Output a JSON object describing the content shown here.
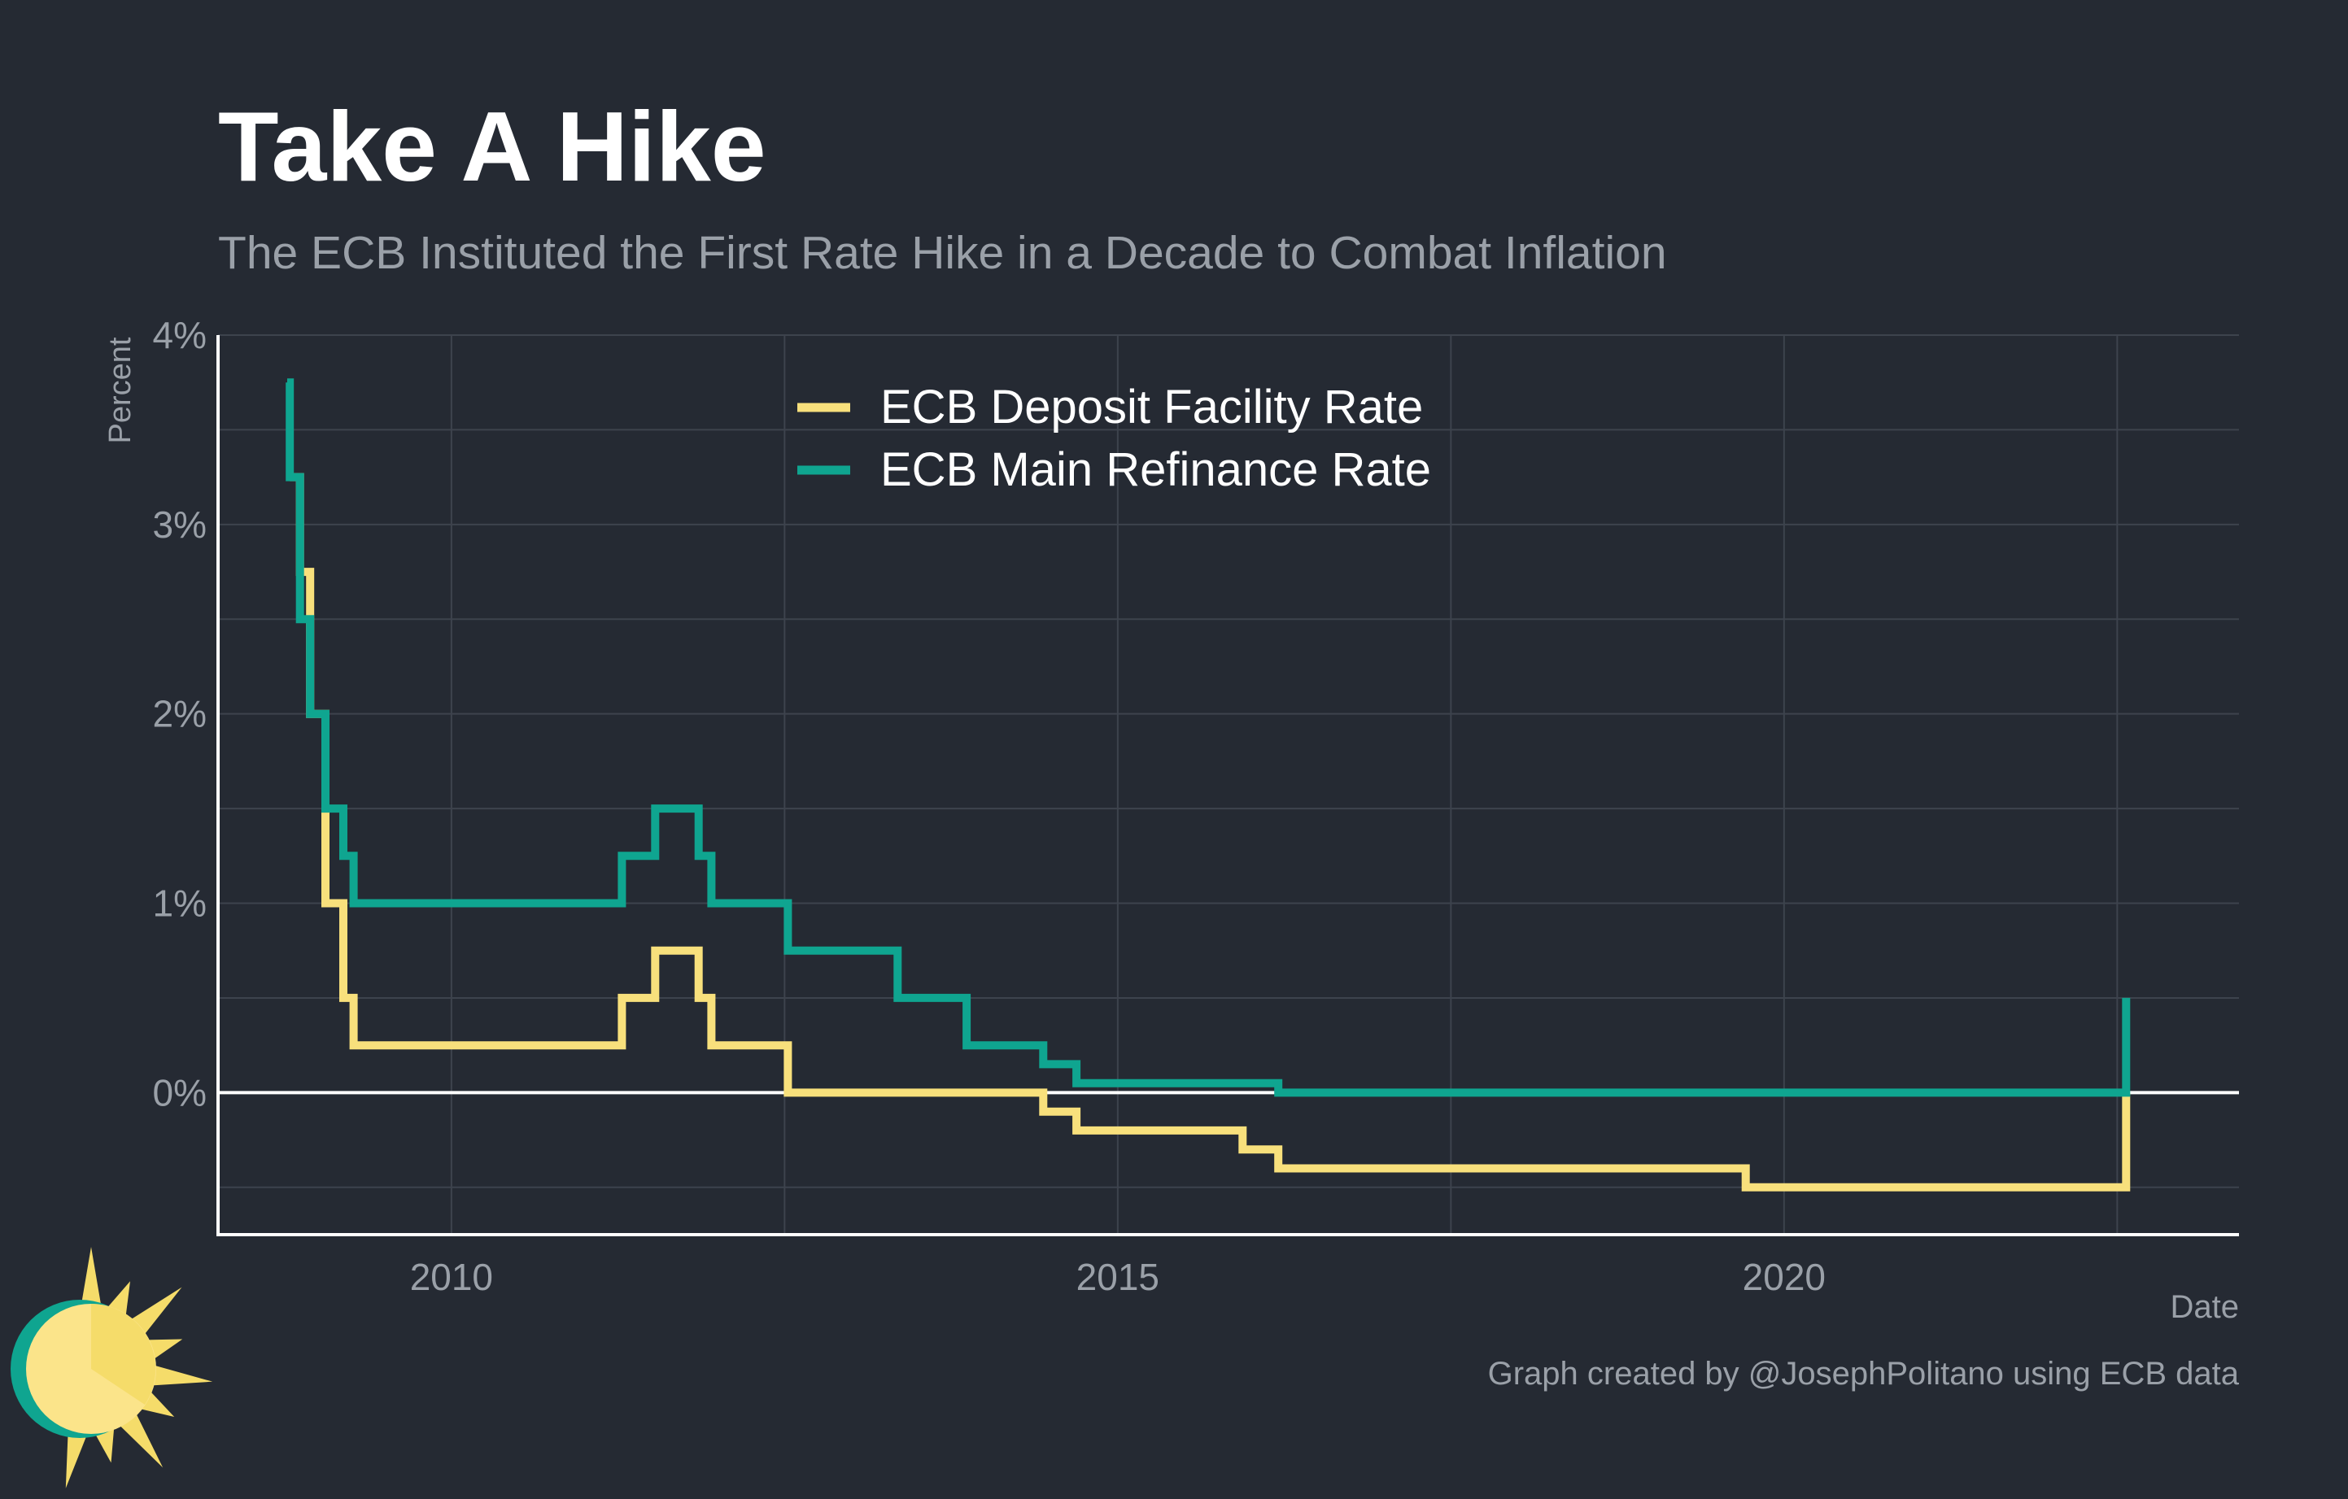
{
  "chart_data": {
    "type": "line",
    "title": "Take A Hike",
    "subtitle": "The ECB Instituted the First Rate Hike in a Decade to Combat Inflation",
    "xlabel": "Date",
    "ylabel": "Percent",
    "caption": "Graph created by @JosephPolitano using ECB data",
    "xlim": [
      "2008-04-01",
      "2023-06-01"
    ],
    "ylim": [
      -0.75,
      4
    ],
    "x_ticks": [
      {
        "date": "2010-01-01",
        "label": "2010"
      },
      {
        "date": "2015-01-01",
        "label": "2015"
      },
      {
        "date": "2020-01-01",
        "label": "2020"
      }
    ],
    "y_ticks": [
      {
        "value": 0,
        "label": "0%"
      },
      {
        "value": 1,
        "label": "1%"
      },
      {
        "value": 2,
        "label": "2%"
      },
      {
        "value": 3,
        "label": "3%"
      },
      {
        "value": 4,
        "label": "4%"
      }
    ],
    "grid": true,
    "legend_position": "top-center",
    "series": [
      {
        "name": "ECB Deposit Facility Rate",
        "color": "#f8e07c",
        "points": [
          [
            "2008-10-15",
            3.25
          ],
          [
            "2008-11-12",
            2.75
          ],
          [
            "2008-12-10",
            2.0
          ],
          [
            "2009-01-21",
            1.0
          ],
          [
            "2009-03-11",
            0.5
          ],
          [
            "2009-04-08",
            0.25
          ],
          [
            "2011-04-13",
            0.5
          ],
          [
            "2011-07-13",
            0.75
          ],
          [
            "2011-11-09",
            0.5
          ],
          [
            "2011-12-14",
            0.25
          ],
          [
            "2012-07-11",
            0.0
          ],
          [
            "2014-06-11",
            -0.1
          ],
          [
            "2014-09-10",
            -0.2
          ],
          [
            "2015-12-09",
            -0.3
          ],
          [
            "2016-03-16",
            -0.4
          ],
          [
            "2019-09-18",
            -0.5
          ],
          [
            "2022-07-27",
            0.0
          ]
        ]
      },
      {
        "name": "ECB Main Refinance Rate",
        "color": "#0fa590",
        "points": [
          [
            "2008-10-08",
            3.75
          ],
          [
            "2008-10-15",
            3.25
          ],
          [
            "2008-11-12",
            2.5
          ],
          [
            "2008-12-10",
            2.0
          ],
          [
            "2009-01-21",
            1.5
          ],
          [
            "2009-03-11",
            1.25
          ],
          [
            "2009-04-08",
            1.0
          ],
          [
            "2011-04-13",
            1.25
          ],
          [
            "2011-07-13",
            1.5
          ],
          [
            "2011-11-09",
            1.25
          ],
          [
            "2011-12-14",
            1.0
          ],
          [
            "2012-07-11",
            0.75
          ],
          [
            "2013-05-08",
            0.5
          ],
          [
            "2013-11-13",
            0.25
          ],
          [
            "2014-06-11",
            0.15
          ],
          [
            "2014-09-10",
            0.05
          ],
          [
            "2016-03-16",
            0.0
          ],
          [
            "2022-07-27",
            0.5
          ]
        ]
      }
    ]
  },
  "logo": {
    "name": "sun-logo",
    "colors": {
      "ring": "#0fa590",
      "face": "#fbe48a",
      "rays": "#f5dc6a"
    }
  },
  "colors": {
    "background": "#252a33",
    "grid": "#3d434d",
    "zero_line": "#ffffff",
    "axis": "#ffffff",
    "tick_text": "#9aa0a8",
    "title": "#ffffff",
    "subtitle": "#9aa0a8",
    "legend_text": "#ffffff"
  }
}
